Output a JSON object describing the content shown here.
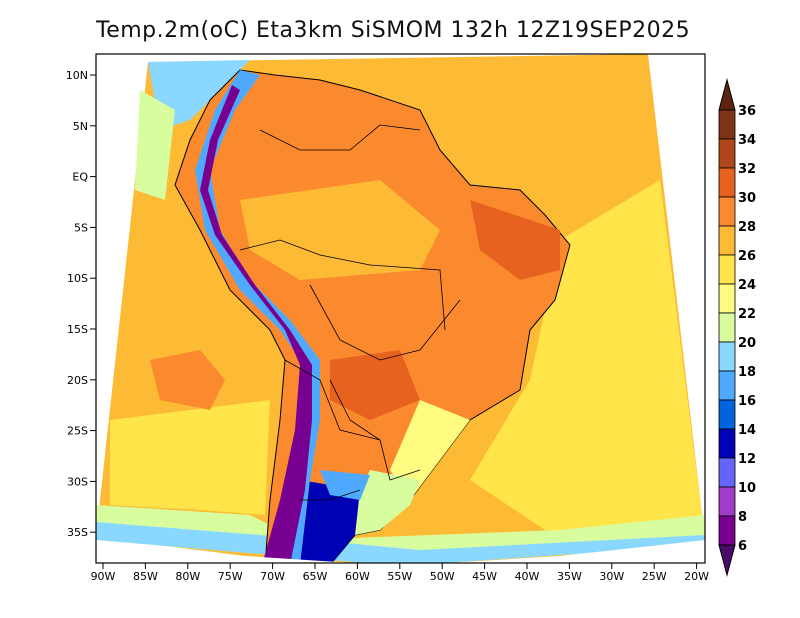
{
  "title": "Temp.2m(oC) Eta3km SiSMOM 132h 12Z19SEP2025",
  "lat_labels": [
    "10N",
    "5N",
    "EQ",
    "5S",
    "10S",
    "15S",
    "20S",
    "25S",
    "30S",
    "35S"
  ],
  "lon_labels": [
    "90W",
    "85W",
    "80W",
    "75W",
    "70W",
    "65W",
    "60W",
    "55W",
    "50W",
    "45W",
    "40W",
    "35W",
    "30W",
    "25W",
    "20W"
  ],
  "colorbar": {
    "labels": [
      "36",
      "34",
      "32",
      "30",
      "28",
      "26",
      "24",
      "22",
      "20",
      "18",
      "16",
      "14",
      "12",
      "10",
      "8",
      "6"
    ],
    "colors": [
      "#7f3316",
      "#b0471c",
      "#e8621f",
      "#fb8a2e",
      "#fdba35",
      "#ffe54a",
      "#fffb80",
      "#d8fd9f",
      "#8ad8ff",
      "#4ea9ff",
      "#0065dc",
      "#0000b4",
      "#6464ff",
      "#a03cc8",
      "#780091"
    ],
    "over_color": "#5c2310",
    "under_color": "#4a0a6a"
  }
}
